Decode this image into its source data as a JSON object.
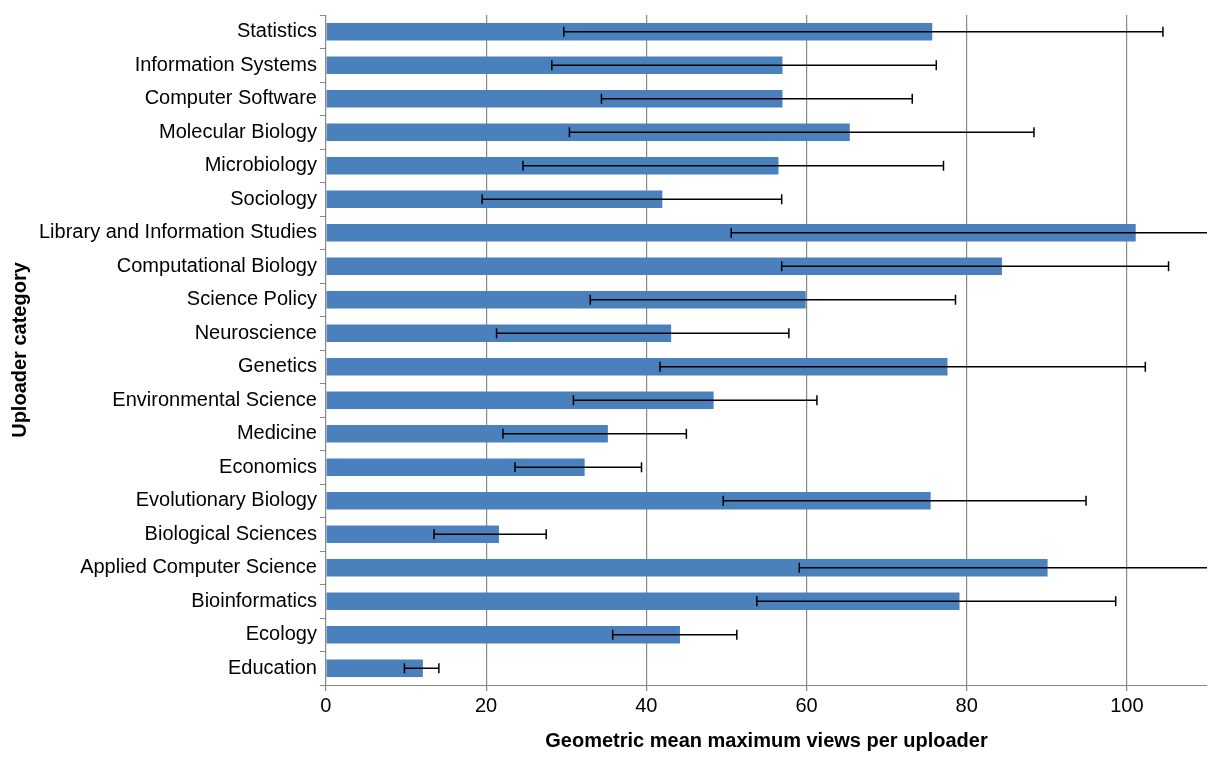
{
  "chart_data": {
    "type": "bar",
    "orientation": "horizontal",
    "xlabel": "Geometric mean maximum views per uploader",
    "ylabel": "Uploader category",
    "categories": [
      "Statistics",
      "Information Systems",
      "Computer Software",
      "Molecular Biology",
      "Microbiology",
      "Sociology",
      "Library and Information Studies",
      "Computational Biology",
      "Science Policy",
      "Neuroscience",
      "Genetics",
      "Environmental Science",
      "Medicine",
      "Economics",
      "Evolutionary Biology",
      "Biological Sciences",
      "Applied Computer Science",
      "Bioinformatics",
      "Ecology",
      "Education"
    ],
    "values": [
      75.7,
      57.0,
      57.0,
      65.4,
      56.5,
      42.0,
      101.1,
      84.4,
      59.9,
      43.1,
      77.6,
      48.4,
      35.2,
      32.3,
      75.5,
      21.6,
      90.1,
      79.1,
      44.2,
      12.1
    ],
    "errors": [
      [
        29.7,
        104.5
      ],
      [
        28.2,
        76.2
      ],
      [
        34.4,
        73.2
      ],
      [
        30.4,
        88.4
      ],
      [
        24.6,
        77.1
      ],
      [
        19.5,
        56.9
      ],
      [
        50.6,
        110
      ],
      [
        56.9,
        105.2
      ],
      [
        33.0,
        78.6
      ],
      [
        21.3,
        57.8
      ],
      [
        41.7,
        102.3
      ],
      [
        30.9,
        61.3
      ],
      [
        22.1,
        45.0
      ],
      [
        23.6,
        39.4
      ],
      [
        49.6,
        94.9
      ],
      [
        13.5,
        27.5
      ],
      [
        59.1,
        110
      ],
      [
        53.8,
        98.6
      ],
      [
        35.8,
        51.3
      ],
      [
        9.8,
        14.1
      ]
    ],
    "color": "#4a81bd",
    "xlim": [
      0,
      110
    ],
    "xticks": [
      0,
      20,
      40,
      60,
      80,
      100
    ],
    "grid": "x",
    "legend": false
  }
}
